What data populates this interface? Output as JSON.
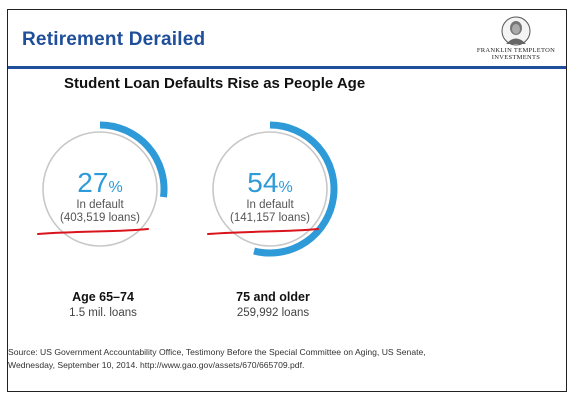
{
  "header": {
    "title": "Retirement  Derailed",
    "logo": {
      "line1": "FRANKLIN TEMPLETON",
      "line2": "INVESTMENTS",
      "icon": "portrait-medallion-icon"
    }
  },
  "chart_data": {
    "type": "pie",
    "title": "Student Loan Defaults Rise as People Age",
    "series": [
      {
        "category": "Age 65–74",
        "category_sub": "1.5 mil. loans",
        "value": 27,
        "value_text": "27",
        "unit": "%",
        "status_label": "In default",
        "count_label": "(403,519 loans)"
      },
      {
        "category": "75 and older",
        "category_sub": "259,992 loans",
        "value": 54,
        "value_text": "54",
        "unit": "%",
        "status_label": "In default",
        "count_label": "(141,157 loans)"
      }
    ],
    "colors": {
      "arc": "#2e9ad8",
      "ring": "#c8c8c8",
      "value": "#2e9ad8",
      "annotation": "#d9141c"
    }
  },
  "source": {
    "line1": "Source: US Government Accountability Office, Testimony Before the Special Committee on Aging, US Senate,",
    "line2": "Wednesday, September 10, 2014. http://www.gao.gov/assets/670/665709.pdf."
  }
}
